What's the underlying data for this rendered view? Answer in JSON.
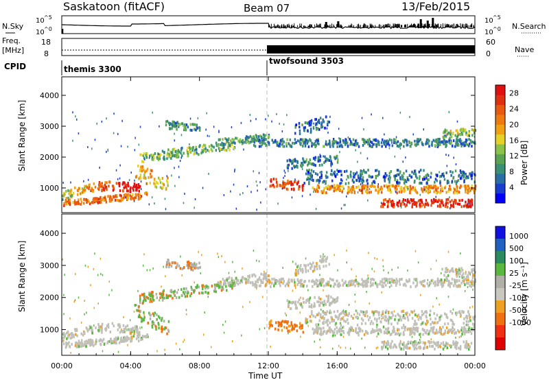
{
  "header": {
    "station": "Saskatoon (fitACF)",
    "beam": "Beam 07",
    "date": "13/Feb/2015"
  },
  "labels": {
    "nsky": "N.Sky",
    "nsearch": "N.Search",
    "freq": "Freq.",
    "mhz": "[MHz]",
    "nave": "Nave",
    "cpid": "CPID",
    "cpid_1": "themis 3300",
    "cpid_2": "twofsound 3503",
    "ten": "10",
    "exp5": "^5",
    "exp0": "^0",
    "freq_ticks": [
      "18",
      "8"
    ],
    "nave_ticks": [
      "60",
      "0"
    ],
    "power_label": "Power [dB]",
    "velocity_label": "Velocity [m s⁻¹]"
  },
  "chart_data": [
    {
      "type": "line",
      "name": "noise-panel",
      "ylabels": [
        "N.Sky",
        "N.Search"
      ],
      "yticks_left": [
        "10^5",
        "10^0"
      ],
      "yticks_right": [
        "10^5",
        "10^0"
      ]
    },
    {
      "type": "line",
      "name": "freq-nave-panel",
      "ylabels": [
        "Freq. [MHz]",
        "Nave"
      ],
      "yticks_left": [
        18,
        8
      ],
      "yticks_right": [
        60,
        0
      ],
      "cpid": [
        {
          "start": "00:00",
          "label": "themis 3300"
        },
        {
          "start": "12:00",
          "label": "twofsound 3503"
        }
      ]
    },
    {
      "type": "heatmap",
      "name": "power",
      "ylabel": "Slant Range [km]",
      "ylim": [
        200,
        4600
      ],
      "yticks": [
        1000,
        2000,
        3000,
        4000
      ],
      "xlim": [
        0,
        24
      ],
      "colorbar": {
        "label": "Power [dB]",
        "ticks": [
          4,
          8,
          12,
          16,
          20,
          24,
          28
        ],
        "range": [
          0,
          30
        ]
      }
    },
    {
      "type": "heatmap",
      "name": "velocity",
      "ylabel": "Slant Range [km]",
      "ylim": [
        200,
        4600
      ],
      "yticks": [
        1000,
        2000,
        3000,
        4000
      ],
      "xlim": [
        0,
        24
      ],
      "xticks": [
        "00:00",
        "04:00",
        "08:00",
        "12:00",
        "16:00",
        "20:00",
        "00:00"
      ],
      "xlabel": "Time UT",
      "colorbar": {
        "label": "Velocity [m s⁻¹]",
        "ticks": [
          "1000",
          "500",
          "100",
          "25",
          "-25",
          "-100",
          "-500",
          "-1000"
        ]
      }
    }
  ]
}
